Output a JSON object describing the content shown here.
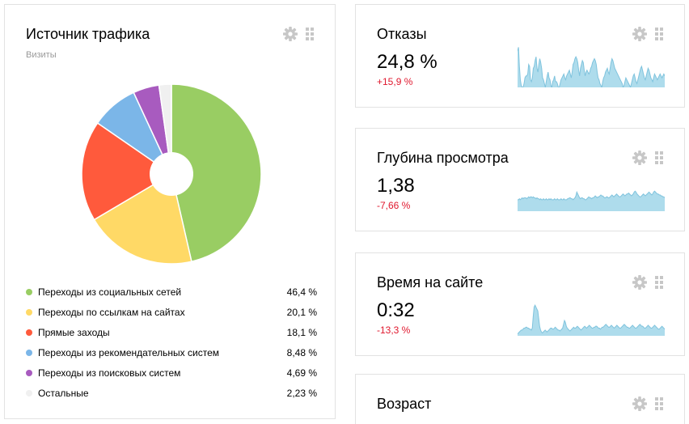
{
  "traffic": {
    "title": "Источник трафика",
    "subtitle": "Визиты",
    "icons": {
      "settings": "gear-icon",
      "drag": "drag-handle-icon"
    },
    "legend": [
      {
        "label": "Переходы из социальных сетей",
        "pct": "46,4 %",
        "value": 46.4,
        "color": "#99cd63"
      },
      {
        "label": "Переходы по ссылкам на сайтах",
        "pct": "20,1 %",
        "value": 20.1,
        "color": "#ffd966"
      },
      {
        "label": "Прямые заходы",
        "pct": "18,1 %",
        "value": 18.1,
        "color": "#ff5a3c"
      },
      {
        "label": "Переходы из рекомендательных систем",
        "pct": "8,48 %",
        "value": 8.48,
        "color": "#7bb6e8"
      },
      {
        "label": "Переходы из поисковых систем",
        "pct": "4,69 %",
        "value": 4.69,
        "color": "#a85bbf"
      },
      {
        "label": "Остальные",
        "pct": "2,23 %",
        "value": 2.23,
        "color": "#f0f0f0"
      }
    ]
  },
  "metrics": [
    {
      "title": "Отказы",
      "value": "24,8 %",
      "delta": "+15,9 %",
      "spark": [
        38,
        42,
        22,
        8,
        2,
        0,
        0,
        4,
        10,
        12,
        12,
        14,
        24,
        22,
        8,
        6,
        10,
        20,
        22,
        28,
        32,
        20,
        16,
        24,
        30,
        26,
        20,
        10,
        8,
        4,
        0,
        6,
        12,
        16,
        10,
        8,
        2,
        0,
        6,
        8,
        12,
        6,
        6,
        4,
        0,
        0,
        4,
        8,
        10,
        12,
        14,
        10,
        8,
        12,
        14,
        16,
        18,
        14,
        10,
        16,
        24,
        26,
        30,
        32,
        30,
        26,
        18,
        12,
        20,
        24,
        28,
        26,
        18,
        12,
        16,
        18,
        16,
        14,
        16,
        20,
        22,
        26,
        28,
        30,
        28,
        24,
        16,
        10,
        8,
        4,
        2,
        0,
        6,
        10,
        12,
        16,
        18,
        20,
        16,
        14,
        20,
        26,
        30,
        28,
        24,
        20,
        18,
        16,
        14,
        12,
        10,
        8,
        6,
        4,
        0,
        2,
        6,
        10,
        8,
        6,
        4,
        2,
        0,
        4,
        8,
        12,
        14,
        10,
        6,
        4,
        8,
        12,
        16,
        20,
        22,
        18,
        14,
        10,
        8,
        12,
        16,
        20,
        18,
        14,
        10,
        8,
        6,
        10,
        14,
        12,
        10,
        8,
        10,
        12,
        14,
        12,
        10,
        12,
        14,
        12
      ],
      "spark_max": 44
    },
    {
      "title": "Глубина просмотра",
      "value": "1,38",
      "delta": "-7,66 %",
      "spark": [
        12,
        12,
        13,
        12,
        13,
        14,
        13,
        14,
        14,
        14,
        13,
        14,
        15,
        14,
        15,
        15,
        14,
        15,
        14,
        14,
        13,
        14,
        13,
        13,
        12,
        13,
        12,
        12,
        13,
        12,
        12,
        13,
        12,
        12,
        13,
        12,
        13,
        12,
        12,
        12,
        13,
        12,
        12,
        13,
        12,
        12,
        12,
        13,
        12,
        12,
        13,
        12,
        12,
        12,
        13,
        13,
        14,
        14,
        13,
        13,
        12,
        13,
        14,
        16,
        20,
        18,
        16,
        14,
        13,
        14,
        14,
        13,
        13,
        12,
        12,
        13,
        14,
        15,
        14,
        14,
        13,
        14,
        14,
        15,
        16,
        15,
        14,
        15,
        15,
        16,
        17,
        16,
        16,
        15,
        14,
        14,
        15,
        15,
        14,
        14,
        15,
        16,
        17,
        16,
        15,
        16,
        17,
        18,
        17,
        16,
        15,
        15,
        16,
        17,
        18,
        17,
        16,
        17,
        18,
        18,
        19,
        18,
        17,
        16,
        17,
        18,
        20,
        21,
        20,
        18,
        17,
        16,
        15,
        15,
        16,
        17,
        18,
        17,
        16,
        17,
        18,
        19,
        20,
        19,
        18,
        17,
        18,
        20,
        21,
        20,
        19,
        18,
        18,
        17,
        17,
        16,
        16,
        15,
        15,
        14
      ],
      "spark_max": 44
    },
    {
      "title": "Время на сайте",
      "value": "0:32",
      "delta": "-13,3 %",
      "spark": [
        2,
        3,
        4,
        5,
        6,
        6,
        7,
        8,
        8,
        9,
        9,
        8,
        8,
        7,
        7,
        6,
        8,
        20,
        30,
        32,
        30,
        28,
        26,
        18,
        10,
        6,
        4,
        3,
        4,
        5,
        6,
        5,
        4,
        5,
        6,
        7,
        8,
        8,
        7,
        7,
        8,
        9,
        8,
        7,
        6,
        6,
        5,
        6,
        7,
        8,
        12,
        16,
        14,
        10,
        8,
        7,
        6,
        5,
        6,
        7,
        8,
        9,
        8,
        8,
        9,
        10,
        9,
        8,
        7,
        6,
        7,
        8,
        9,
        10,
        9,
        8,
        9,
        10,
        11,
        10,
        9,
        8,
        8,
        9,
        9,
        10,
        10,
        9,
        8,
        8,
        7,
        8,
        9,
        9,
        10,
        11,
        12,
        11,
        10,
        9,
        9,
        10,
        11,
        10,
        9,
        8,
        9,
        10,
        11,
        10,
        9,
        8,
        8,
        9,
        10,
        11,
        12,
        11,
        10,
        9,
        9,
        8,
        8,
        9,
        10,
        11,
        10,
        9,
        8,
        8,
        9,
        10,
        11,
        12,
        11,
        10,
        10,
        9,
        8,
        8,
        9,
        10,
        11,
        10,
        9,
        8,
        8,
        9,
        10,
        11,
        10,
        9,
        8,
        7,
        7,
        8,
        9,
        10,
        9,
        8,
        7
      ],
      "spark_max": 44
    },
    {
      "title": "Возраст"
    }
  ]
}
